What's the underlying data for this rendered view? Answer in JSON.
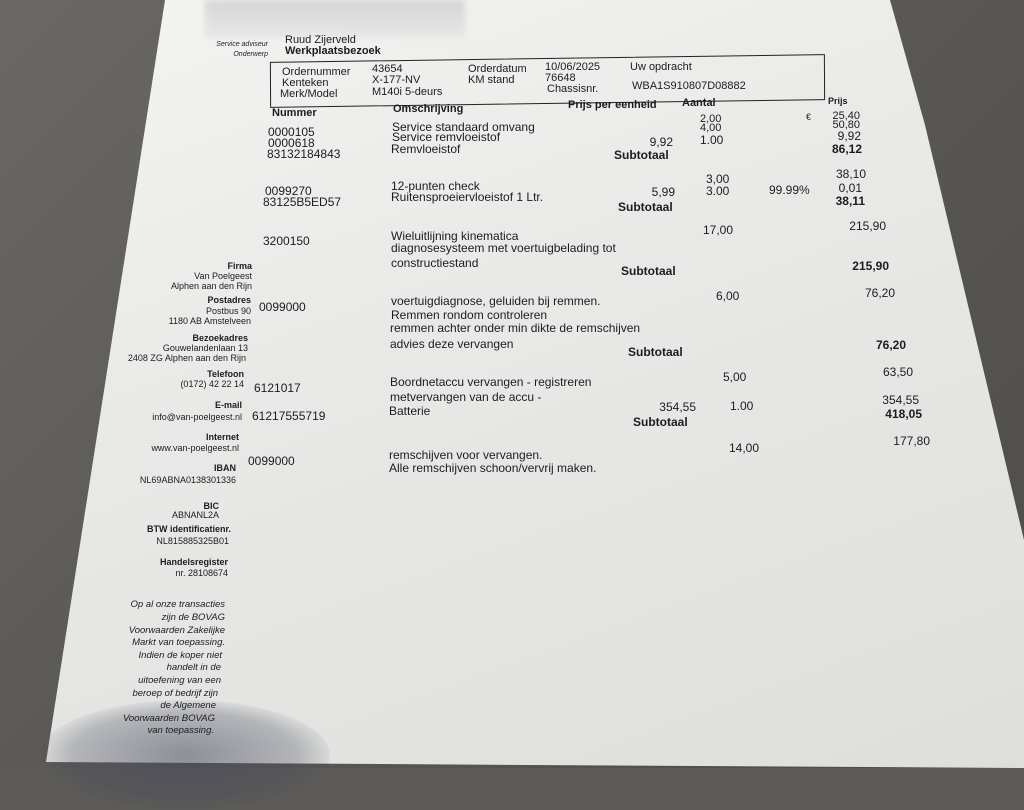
{
  "header": {
    "service_adviseur_label": "Service adviseur",
    "service_adviseur": "Ruud Zijerveld",
    "onderwerp_label": "Onderwerp",
    "onderwerp": "Werkplaatsbezoek"
  },
  "order": {
    "ordernummer_label": "Ordernummer",
    "ordernummer": "43654",
    "kenteken_label": "Kenteken",
    "kenteken": "X-177-NV",
    "merk_model_label": "Merk/Model",
    "merk_model": "M140i 5-deurs",
    "orderdatum_label": "Orderdatum",
    "orderdatum": "10/06/2025",
    "km_stand_label": "KM stand",
    "km_stand": "76648",
    "chassisnr_label": "Chassisnr.",
    "chassisnr": "WBA1S910807D08882",
    "uw_opdracht_label": "Uw opdracht"
  },
  "table": {
    "headers": {
      "nummer": "Nummer",
      "omschrijving": "Omschrijving",
      "prijs_per_eenheid": "Prijs per eenheid",
      "aantal": "Aantal",
      "prijs": "Prijs"
    },
    "currency": "€",
    "subtotal_label": "Subtotaal",
    "groups": [
      {
        "numbers": [
          "0000105",
          "0000618",
          "83132184843"
        ],
        "descriptions": [
          "Service standaard omvang",
          "Service remvloeistof",
          "Remvloeistof"
        ],
        "unit_prices": [
          "9,92"
        ],
        "quantities": [
          "2,00",
          "4,00",
          "1.00"
        ],
        "prices": [
          "25,40",
          "50,80",
          "9,92"
        ],
        "subtotal": "86,12"
      },
      {
        "numbers": [
          "0099270",
          "83125B5ED57"
        ],
        "descriptions": [
          "12-punten check",
          "Ruitensproeiervloeistof 1 Ltr."
        ],
        "unit_prices": [
          "5,99"
        ],
        "quantities": [
          "3,00",
          "3.00"
        ],
        "discount": "99.99%",
        "prices": [
          "38,10",
          "0,01"
        ],
        "subtotal": "38,11"
      },
      {
        "numbers": [
          "3200150"
        ],
        "descriptions": [
          "Wieluitlijning kinematica",
          "diagnosesysteem met voertuigbelading tot",
          "constructiestand"
        ],
        "quantities": [
          "17,00"
        ],
        "prices": [
          "215,90"
        ],
        "subtotal": "215,90"
      },
      {
        "numbers": [
          "0099000"
        ],
        "descriptions": [
          "voertuigdiagnose, geluiden bij remmen.",
          "Remmen rondom controleren",
          "remmen achter onder min dikte de remschijven",
          "advies deze vervangen"
        ],
        "quantities": [
          "6,00"
        ],
        "prices": [
          "76,20"
        ],
        "subtotal": "76,20"
      },
      {
        "numbers": [
          "6121017",
          "61217555719"
        ],
        "descriptions": [
          "Boordnetaccu vervangen - registreren",
          "metvervangen van de accu -",
          "Batterie"
        ],
        "unit_prices": [
          "354,55"
        ],
        "quantities": [
          "5,00",
          "1.00"
        ],
        "prices": [
          "63,50",
          "354,55"
        ],
        "subtotal": "418,05"
      },
      {
        "numbers": [
          "0099000"
        ],
        "descriptions": [
          "remschijven voor vervangen.",
          "Alle remschijven schoon/vervrij maken."
        ],
        "quantities": [
          "14,00"
        ],
        "prices": [
          "177,80"
        ]
      }
    ]
  },
  "sidebar": {
    "firma_label": "Firma",
    "firma": [
      "Van Poelgeest",
      "Alphen aan den Rijn"
    ],
    "postadres_label": "Postadres",
    "postadres": [
      "Postbus 90",
      "1180 AB Amstelveen"
    ],
    "bezoekadres_label": "Bezoekadres",
    "bezoekadres": [
      "Gouwelandenlaan 13",
      "2408 ZG Alphen aan den Rijn"
    ],
    "telefoon_label": "Telefoon",
    "telefoon": "(0172) 42 22 14",
    "email_label": "E-mail",
    "email": "info@van-poelgeest.nl",
    "internet_label": "Internet",
    "internet": "www.van-poelgeest.nl",
    "iban_label": "IBAN",
    "iban": "NL69ABNA0138301336",
    "bic_label": "BIC",
    "bic": "ABNANL2A",
    "btw_label": "BTW identificatienr.",
    "btw": "NL815885325B01",
    "handelsregister_label": "Handelsregister",
    "handelsregister": "nr. 28108674",
    "footer": [
      "Op al onze transacties",
      "zijn de BOVAG",
      "Voorwaarden Zakelijke",
      "Markt van toepassing.",
      "Indien de koper niet",
      "handelt in de",
      "uitoefening van een",
      "beroep of bedrijf zijn",
      "de Algemene",
      "Voorwaarden BOVAG",
      "van toepassing."
    ]
  }
}
